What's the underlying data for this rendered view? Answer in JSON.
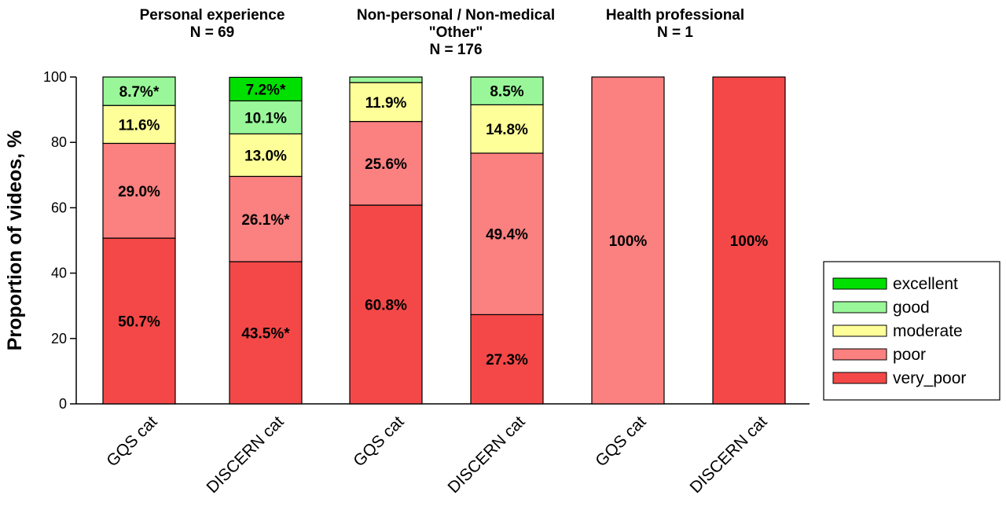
{
  "chart_data": {
    "type": "bar",
    "stacked": true,
    "ylabel": "Proportion of videos, %",
    "ylim": [
      0,
      100
    ],
    "yticks": [
      "0",
      "20",
      "40",
      "60",
      "80",
      "100"
    ],
    "grid": false,
    "legend_position": "right",
    "groups": [
      {
        "title_lines": [
          "Personal experience",
          "N = 69"
        ]
      },
      {
        "title_lines": [
          "Non-personal / Non-medical",
          "\"Other\"",
          "N = 176"
        ]
      },
      {
        "title_lines": [
          "Health professional",
          "N = 1"
        ]
      }
    ],
    "categories": [
      "GQS cat",
      "DISCERN cat",
      "GQS cat",
      "DISCERN cat",
      "GQS cat",
      "DISCERN cat"
    ],
    "series": [
      {
        "name": "very_poor",
        "color": "#f44848",
        "values": [
          50.7,
          43.5,
          60.8,
          27.3,
          0,
          100
        ],
        "labels": [
          "50.7%",
          "43.5%*",
          "60.8%",
          "27.3%",
          "",
          "100%"
        ]
      },
      {
        "name": "poor",
        "color": "#fb8080",
        "values": [
          29.0,
          26.1,
          25.6,
          49.4,
          100,
          0
        ],
        "labels": [
          "29.0%",
          "26.1%*",
          "25.6%",
          "49.4%",
          "100%",
          ""
        ]
      },
      {
        "name": "moderate",
        "color": "#ffff99",
        "values": [
          11.6,
          13.0,
          11.9,
          14.8,
          0,
          0
        ],
        "labels": [
          "11.6%",
          "13.0%",
          "11.9%",
          "14.8%",
          "",
          ""
        ]
      },
      {
        "name": "good",
        "color": "#99f799",
        "values": [
          8.7,
          10.1,
          1.7,
          8.5,
          0,
          0
        ],
        "labels": [
          "8.7%*",
          "10.1%",
          "",
          "8.5%",
          "",
          ""
        ]
      },
      {
        "name": "excellent",
        "color": "#00e000",
        "values": [
          0,
          7.2,
          0,
          0,
          0,
          0
        ],
        "labels": [
          "",
          "7.2%*",
          "",
          "",
          "",
          ""
        ]
      }
    ],
    "legend_order": [
      "excellent",
      "good",
      "moderate",
      "poor",
      "very_poor"
    ]
  }
}
